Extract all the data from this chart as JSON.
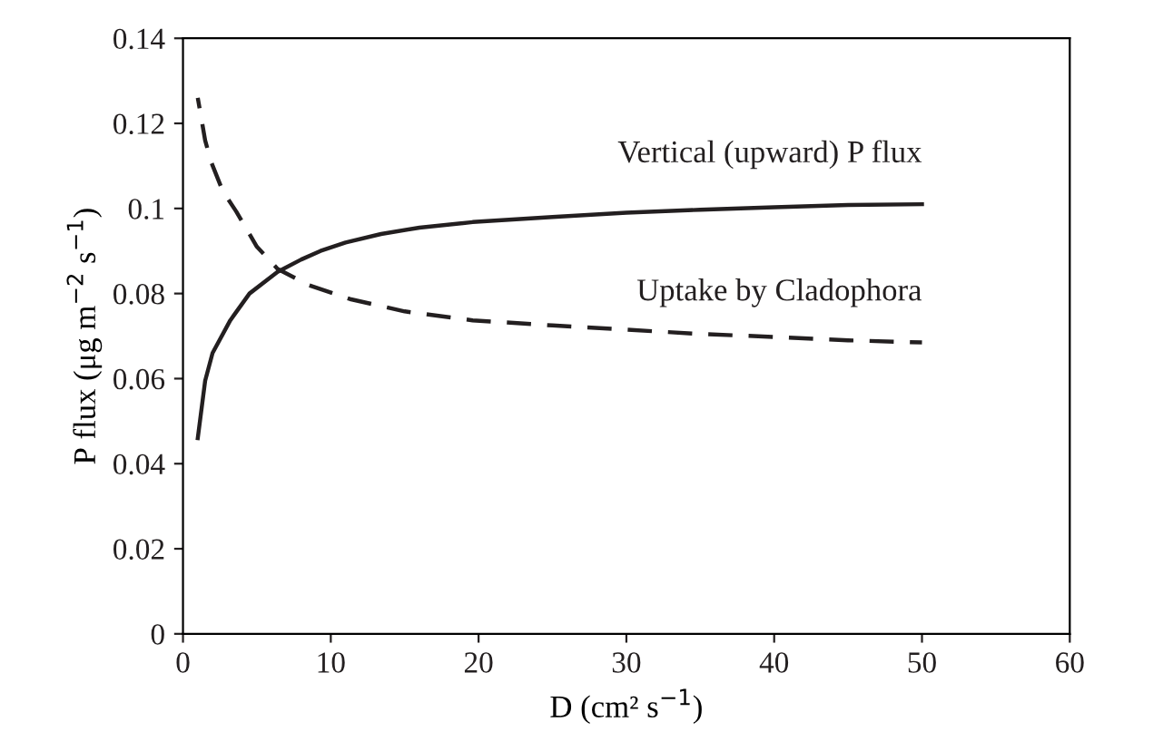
{
  "chart_data": {
    "type": "line",
    "xlabel": "D (cm² s$^{−1}$)",
    "ylabel": "P flux (μg m$^{−2}$ s$^{−1}$)",
    "xlim": [
      0,
      60
    ],
    "xticks": [
      0,
      10,
      20,
      30,
      40,
      50,
      60
    ],
    "ylim": [
      0,
      0.14
    ],
    "yticks": [
      0,
      0.02,
      0.04,
      0.06,
      0.08,
      0.1,
      0.12,
      0.14
    ],
    "grid": false,
    "legend": false,
    "series": [
      {
        "name": "Vertical (upward) P flux",
        "color": "#231f20",
        "line_style": "solid",
        "x": [
          1,
          1.5,
          2,
          3.2,
          4.5,
          6.4,
          8,
          9.3,
          11,
          13.4,
          16,
          19.6,
          25,
          30,
          35,
          40,
          45,
          50
        ],
        "values": [
          0.046,
          0.0595,
          0.066,
          0.0737,
          0.08,
          0.0851,
          0.088,
          0.09,
          0.092,
          0.094,
          0.0955,
          0.0968,
          0.098,
          0.099,
          0.0997,
          0.1003,
          0.1008,
          0.101
        ]
      },
      {
        "name": "Uptake by Cladophora",
        "color": "#231f20",
        "line_style": "dashed",
        "x": [
          1,
          1.5,
          1.9,
          2.7,
          3.6,
          5,
          6.4,
          8.5,
          11.3,
          15,
          19.6,
          25,
          30,
          35,
          40,
          45,
          50
        ],
        "values": [
          0.126,
          0.116,
          0.111,
          0.104,
          0.0993,
          0.091,
          0.0858,
          0.082,
          0.0787,
          0.0758,
          0.0737,
          0.0725,
          0.0715,
          0.0705,
          0.0698,
          0.069,
          0.0685
        ]
      }
    ]
  }
}
